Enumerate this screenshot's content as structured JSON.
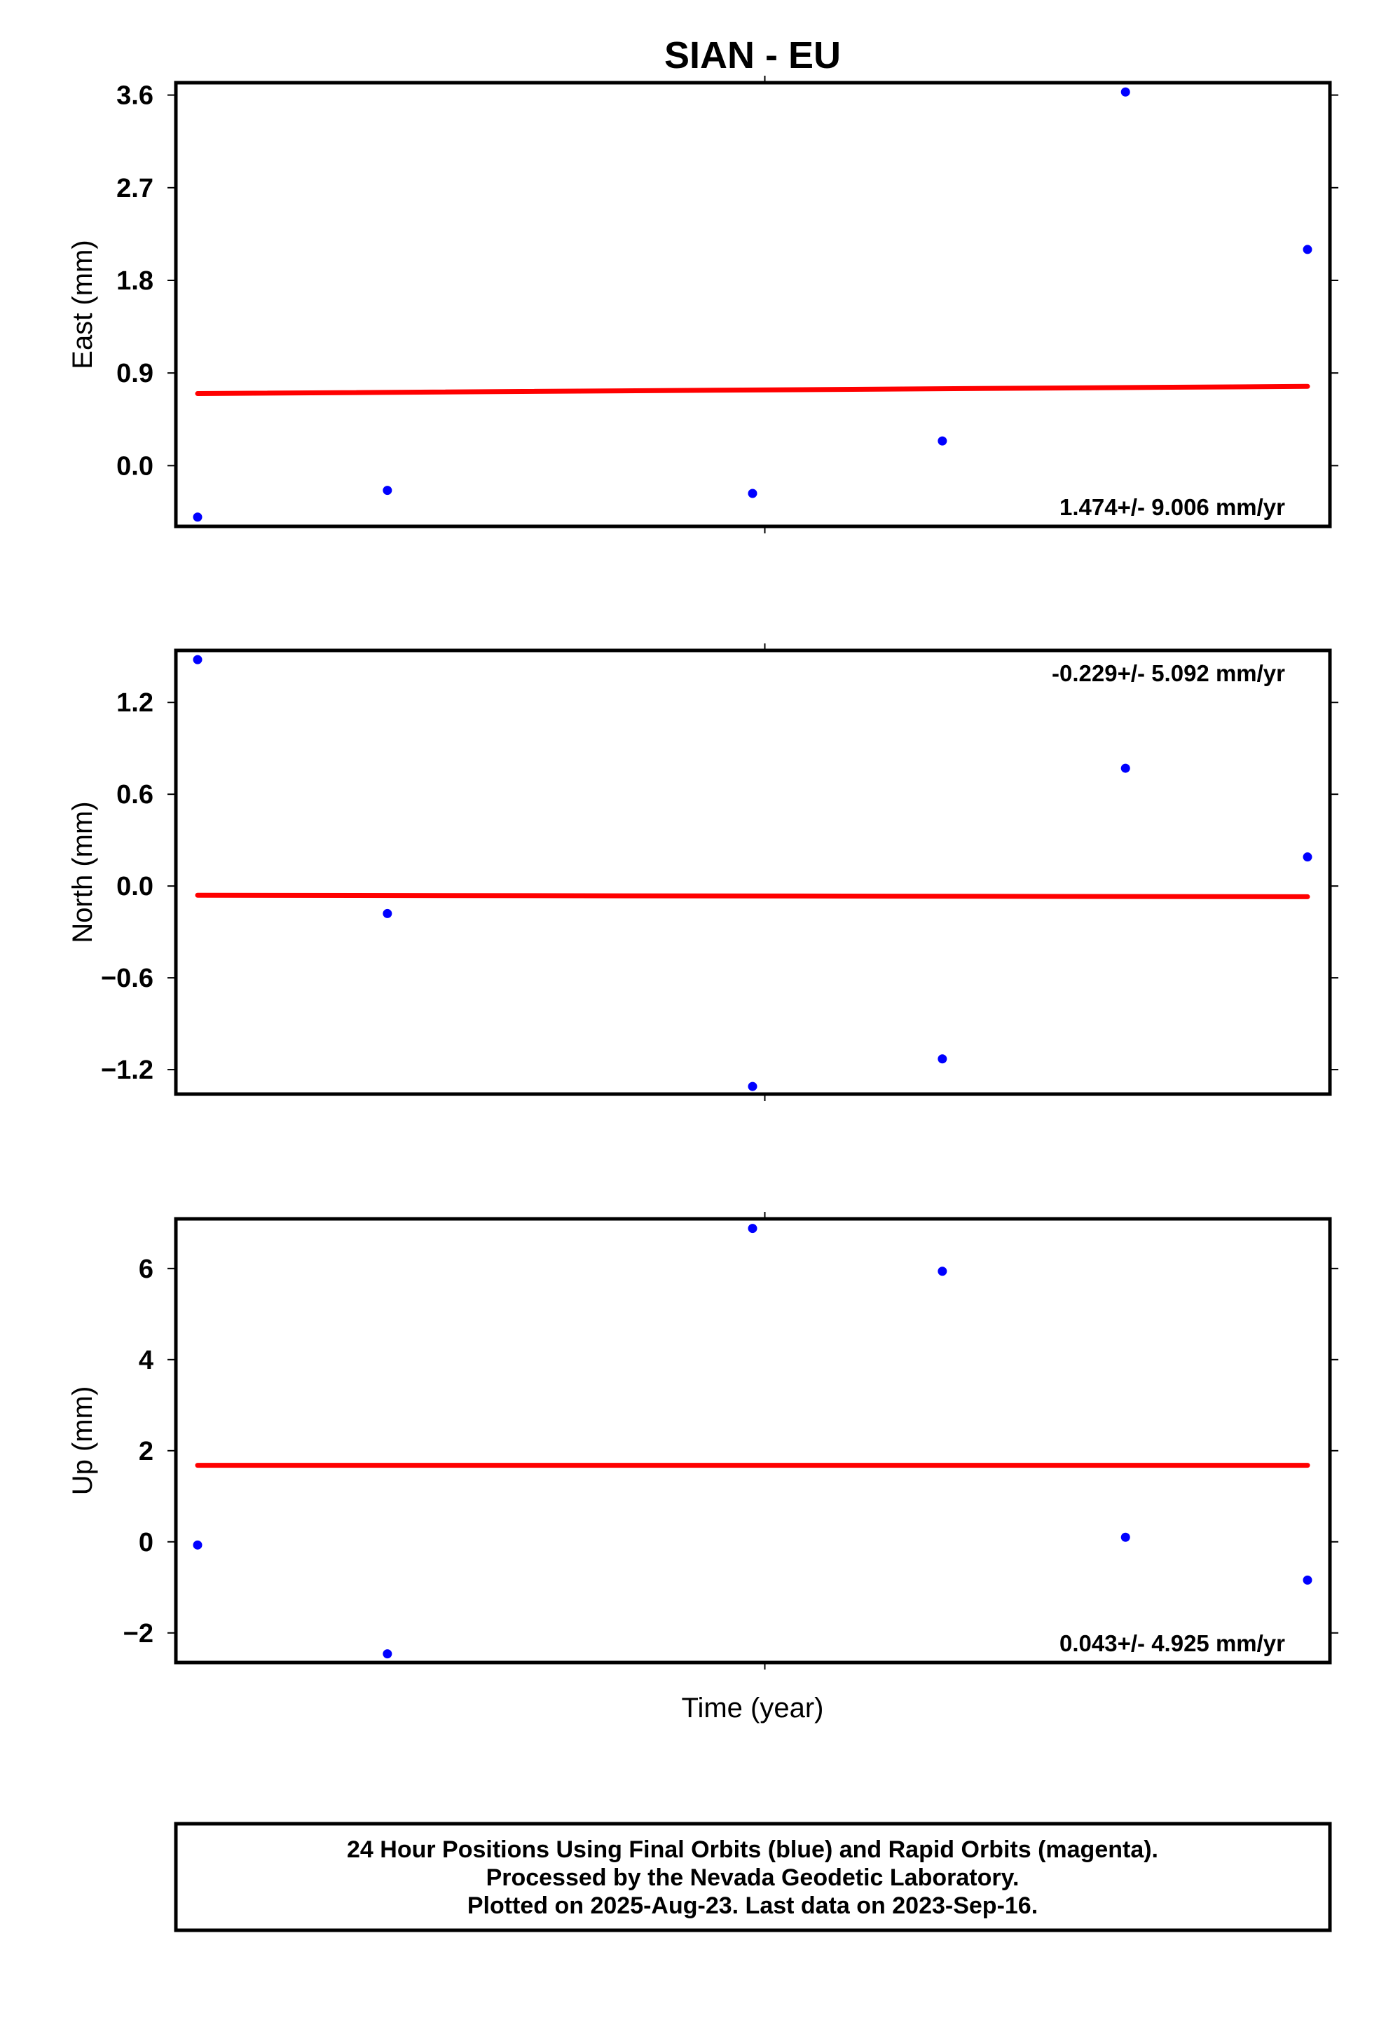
{
  "chart_data": {
    "type": "scatter",
    "title": "SIAN - EU",
    "xlabel": "Time (year)",
    "x": [
      0,
      0.171,
      0.5,
      0.671,
      0.836,
      1.0
    ],
    "panels": [
      {
        "id": "east",
        "ylabel": "East (mm)",
        "ylim": [
          -0.59,
          3.72
        ],
        "yticks": [
          0.0,
          0.9,
          1.8,
          2.7,
          3.6
        ],
        "ytick_labels": [
          "0.0",
          "0.9",
          "1.8",
          "2.7",
          "3.6"
        ],
        "points": [
          -0.5,
          -0.24,
          -0.27,
          0.24,
          3.63,
          2.1
        ],
        "trend": [
          0.7,
          0.77
        ],
        "rate_label": "1.474+/- 9.006 mm/yr",
        "rate_position": "bottom-right"
      },
      {
        "id": "north",
        "ylabel": "North (mm)",
        "ylim": [
          -1.36,
          1.54
        ],
        "yticks": [
          -1.2,
          -0.6,
          0.0,
          0.6,
          1.2
        ],
        "ytick_labels": [
          "−1.2",
          "−0.6",
          "0.0",
          "0.6",
          "1.2"
        ],
        "points": [
          1.48,
          -0.18,
          -1.31,
          -1.13,
          0.77,
          0.19
        ],
        "trend": [
          -0.06,
          -0.07
        ],
        "rate_label": "-0.229+/- 5.092 mm/yr",
        "rate_position": "top-right"
      },
      {
        "id": "up",
        "ylabel": "Up (mm)",
        "ylim": [
          -2.65,
          7.09
        ],
        "yticks": [
          -2,
          0,
          2,
          4,
          6
        ],
        "ytick_labels": [
          "−2",
          "0",
          "2",
          "4",
          "6"
        ],
        "points": [
          -0.07,
          -2.46,
          6.88,
          5.94,
          0.1,
          -0.84
        ],
        "trend": [
          1.68,
          1.68
        ],
        "rate_label": "0.043+/- 4.925 mm/yr",
        "rate_position": "bottom-right"
      }
    ],
    "colors": {
      "points": "#0000ff",
      "trend": "#ff0000",
      "frame": "#000000"
    }
  },
  "footer": {
    "line1": "24 Hour Positions Using Final Orbits (blue) and Rapid Orbits (magenta).",
    "line2": "Processed by the Nevada Geodetic Laboratory.",
    "line3": "Plotted on 2025-Aug-23. Last data on 2023-Sep-16."
  }
}
